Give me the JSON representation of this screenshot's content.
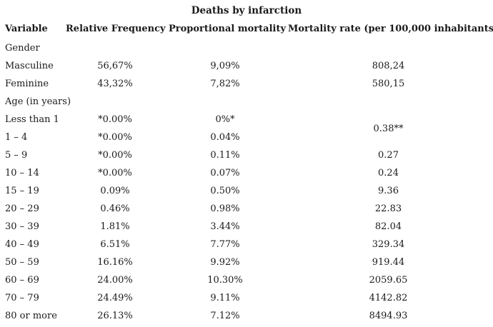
{
  "title": "Deaths by infarction",
  "headers": [
    "Variable",
    "Relative Frequency",
    "Proportional mortality",
    "Mortality rate (per 100,000 inhabitants)"
  ],
  "rows": [
    {
      "variable": "Gender",
      "rel_freq": "",
      "prop_mort": "",
      "rate": ""
    },
    {
      "variable": "Masculine",
      "rel_freq": "56,67%",
      "prop_mort": "9,09%",
      "rate": "808,24"
    },
    {
      "variable": "Feminine",
      "rel_freq": "43,32%",
      "prop_mort": "7,82%",
      "rate": "580,15"
    },
    {
      "variable": "Age (in years)",
      "rel_freq": "",
      "prop_mort": "",
      "rate": ""
    },
    {
      "variable": "Less than 1",
      "rel_freq": "*0.00%",
      "prop_mort": "0%*",
      "rate": ""
    },
    {
      "variable": "1 – 4",
      "rel_freq": "*0.00%",
      "prop_mort": "0.04%",
      "rate": ""
    },
    {
      "variable": "5 – 9",
      "rel_freq": "*0.00%",
      "prop_mort": "0.11%",
      "rate": "0.27"
    },
    {
      "variable": "10 – 14",
      "rel_freq": "*0.00%",
      "prop_mort": "0.07%",
      "rate": "0.24"
    },
    {
      "variable": "15 – 19",
      "rel_freq": "0.09%",
      "prop_mort": "0.50%",
      "rate": "9.36"
    },
    {
      "variable": "20 – 29",
      "rel_freq": "0.46%",
      "prop_mort": "0.98%",
      "rate": "22.83"
    },
    {
      "variable": "30 – 39",
      "rel_freq": "1.81%",
      "prop_mort": "3.44%",
      "rate": "82.04"
    },
    {
      "variable": "40 – 49",
      "rel_freq": "6.51%",
      "prop_mort": "7.77%",
      "rate": "329.34"
    },
    {
      "variable": "50 – 59",
      "rel_freq": "16.16%",
      "prop_mort": "9.92%",
      "rate": "919.44"
    },
    {
      "variable": "60 – 69",
      "rel_freq": "24.00%",
      "prop_mort": "10.30%",
      "rate": "2059.65"
    },
    {
      "variable": "70 – 79",
      "rel_freq": "24.49%",
      "prop_mort": "9.11%",
      "rate": "4142.82"
    },
    {
      "variable": "80 or more",
      "rel_freq": "26.13%",
      "prop_mort": "7.12%",
      "rate": "8494.93"
    }
  ],
  "merged_rate_under_5": "0.38**"
}
